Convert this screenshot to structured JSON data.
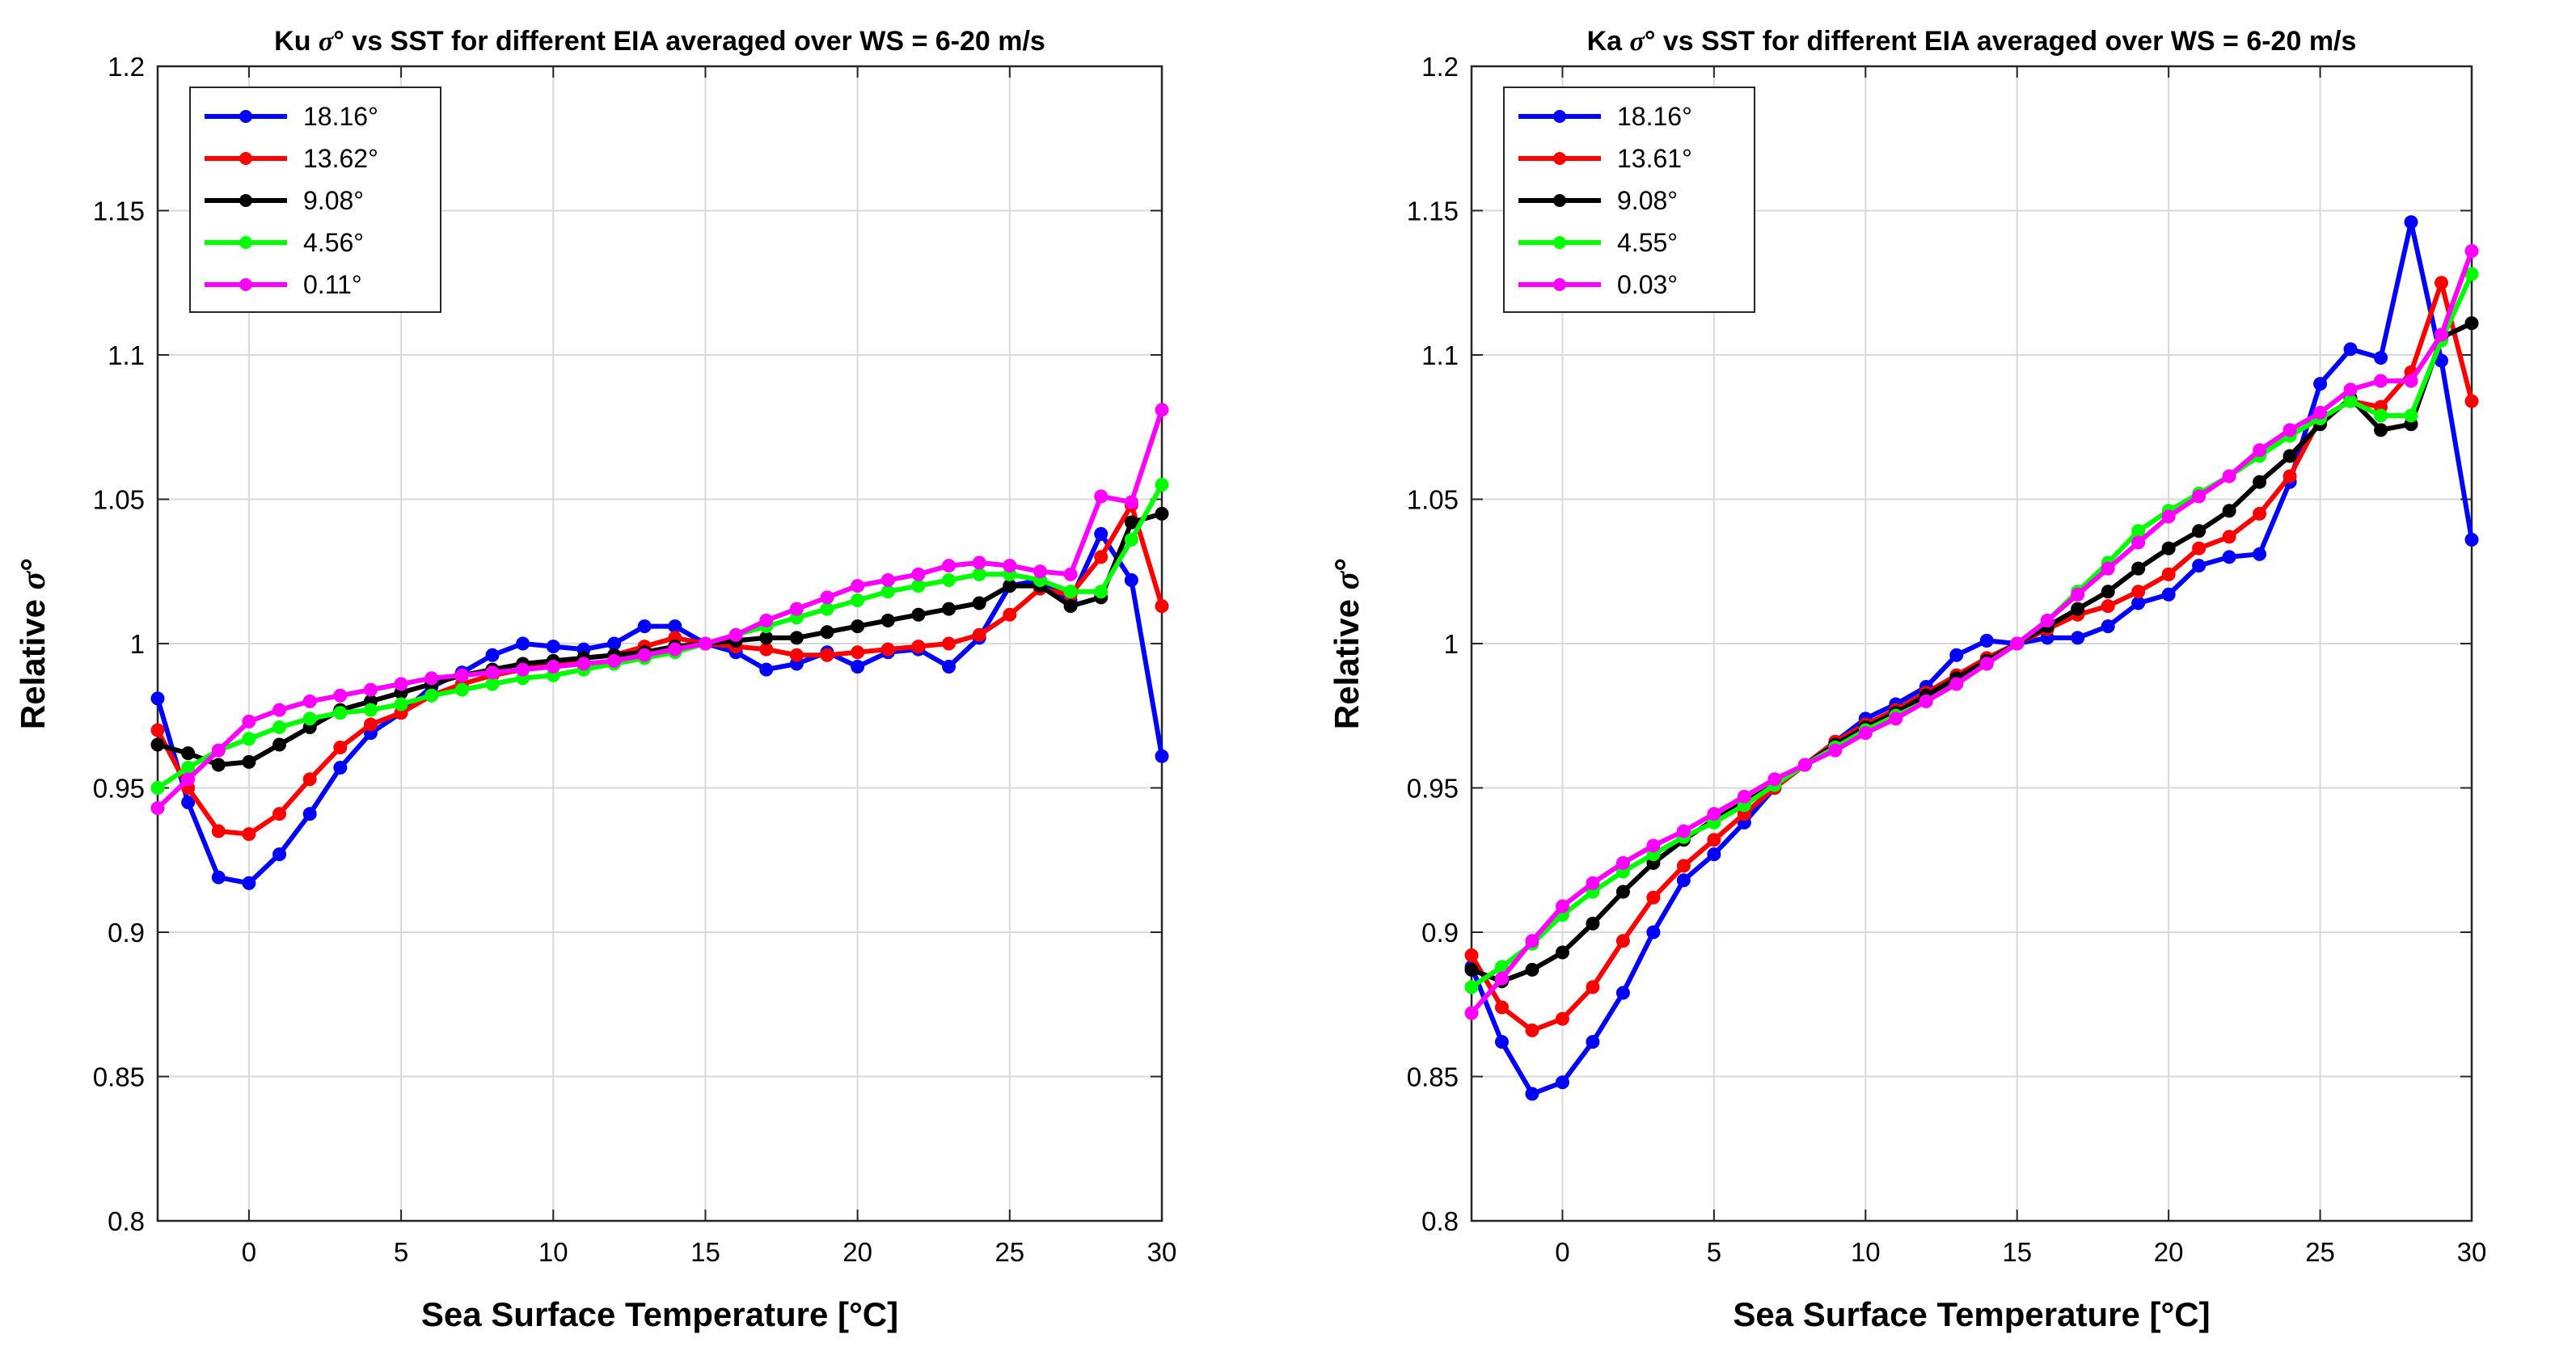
{
  "figure": {
    "background": "#ffffff"
  },
  "chart_data": [
    {
      "type": "line",
      "title_prefix": "Ku ",
      "title_symbol": "σ",
      "title_suffix": "° vs SST for different EIA averaged over WS = 6-20 m/s",
      "xlabel": "Sea Surface Temperature [°C]",
      "ylabel_prefix": "Relative ",
      "ylabel_symbol": "σ",
      "ylabel_suffix": "°",
      "xlim": [
        -3,
        30
      ],
      "ylim": [
        0.8,
        1.2
      ],
      "xticks": [
        0,
        5,
        10,
        15,
        20,
        25,
        30
      ],
      "yticks": [
        0.8,
        0.85,
        0.9,
        0.95,
        1,
        1.05,
        1.1,
        1.15,
        1.2
      ],
      "xtick_labels": [
        "0",
        "5",
        "10",
        "15",
        "20",
        "25",
        "30"
      ],
      "ytick_labels": [
        "0.8",
        "0.85",
        "0.9",
        "0.95",
        "1",
        "1.05",
        "1.1",
        "1.15",
        "1.2"
      ],
      "grid": true,
      "legend_position": "top-left",
      "x": [
        -3,
        -2,
        -1,
        0,
        1,
        2,
        3,
        4,
        5,
        6,
        7,
        8,
        9,
        10,
        11,
        12,
        13,
        14,
        15,
        16,
        17,
        18,
        19,
        20,
        21,
        22,
        23,
        24,
        25,
        26,
        27,
        28,
        29,
        30
      ],
      "series": [
        {
          "name": "18.16°",
          "color": "#0000ff",
          "values": [
            0.981,
            0.945,
            0.919,
            0.917,
            0.927,
            0.941,
            0.957,
            0.969,
            0.976,
            0.985,
            0.99,
            0.996,
            1.0,
            0.999,
            0.998,
            1.0,
            1.006,
            1.006,
            1.0,
            0.997,
            0.991,
            0.993,
            0.997,
            0.992,
            0.997,
            0.998,
            0.992,
            1.002,
            1.02,
            1.022,
            1.015,
            1.038,
            1.022,
            0.961
          ]
        },
        {
          "name": "13.62°",
          "color": "#ff0000",
          "values": [
            0.97,
            0.95,
            0.935,
            0.934,
            0.941,
            0.953,
            0.964,
            0.972,
            0.976,
            0.982,
            0.986,
            0.989,
            0.991,
            0.993,
            0.995,
            0.996,
            0.999,
            1.002,
            1.0,
            0.999,
            0.998,
            0.996,
            0.996,
            0.997,
            0.998,
            0.999,
            1.0,
            1.003,
            1.01,
            1.019,
            1.017,
            1.03,
            1.048,
            1.013
          ]
        },
        {
          "name": "9.08°",
          "color": "#000000",
          "values": [
            0.965,
            0.962,
            0.958,
            0.959,
            0.965,
            0.971,
            0.977,
            0.98,
            0.983,
            0.986,
            0.989,
            0.991,
            0.993,
            0.994,
            0.995,
            0.996,
            0.997,
            0.999,
            1.0,
            1.001,
            1.002,
            1.002,
            1.004,
            1.006,
            1.008,
            1.01,
            1.012,
            1.014,
            1.02,
            1.02,
            1.013,
            1.016,
            1.042,
            1.045
          ]
        },
        {
          "name": "4.56°",
          "color": "#00ff00",
          "values": [
            0.95,
            0.957,
            0.963,
            0.967,
            0.971,
            0.974,
            0.976,
            0.977,
            0.979,
            0.982,
            0.984,
            0.986,
            0.988,
            0.989,
            0.991,
            0.993,
            0.995,
            0.997,
            1.0,
            1.003,
            1.006,
            1.009,
            1.012,
            1.015,
            1.018,
            1.02,
            1.022,
            1.024,
            1.024,
            1.022,
            1.018,
            1.018,
            1.036,
            1.055
          ]
        },
        {
          "name": "0.11°",
          "color": "#ff00ff",
          "values": [
            0.943,
            0.953,
            0.963,
            0.973,
            0.977,
            0.98,
            0.982,
            0.984,
            0.986,
            0.988,
            0.989,
            0.99,
            0.991,
            0.992,
            0.993,
            0.994,
            0.996,
            0.998,
            1.0,
            1.003,
            1.008,
            1.012,
            1.016,
            1.02,
            1.022,
            1.024,
            1.027,
            1.028,
            1.027,
            1.025,
            1.024,
            1.051,
            1.049,
            1.081
          ]
        }
      ]
    },
    {
      "type": "line",
      "title_prefix": "Ka ",
      "title_symbol": "σ",
      "title_suffix": "° vs SST for different EIA averaged over WS = 6-20 m/s",
      "xlabel": "Sea Surface Temperature [°C]",
      "ylabel_prefix": "Relative ",
      "ylabel_symbol": "σ",
      "ylabel_suffix": "°",
      "xlim": [
        -3,
        30
      ],
      "ylim": [
        0.8,
        1.2
      ],
      "xticks": [
        0,
        5,
        10,
        15,
        20,
        25,
        30
      ],
      "yticks": [
        0.8,
        0.85,
        0.9,
        0.95,
        1,
        1.05,
        1.1,
        1.15,
        1.2
      ],
      "xtick_labels": [
        "0",
        "5",
        "10",
        "15",
        "20",
        "25",
        "30"
      ],
      "ytick_labels": [
        "0.8",
        "0.85",
        "0.9",
        "0.95",
        "1",
        "1.05",
        "1.1",
        "1.15",
        "1.2"
      ],
      "grid": true,
      "legend_position": "top-left",
      "x": [
        -3,
        -2,
        -1,
        0,
        1,
        2,
        3,
        4,
        5,
        6,
        7,
        8,
        9,
        10,
        11,
        12,
        13,
        14,
        15,
        16,
        17,
        18,
        19,
        20,
        21,
        22,
        23,
        24,
        25,
        26,
        27,
        28,
        29,
        30
      ],
      "series": [
        {
          "name": "18.16°",
          "color": "#0000ff",
          "values": [
            0.888,
            0.862,
            0.844,
            0.848,
            0.862,
            0.879,
            0.9,
            0.918,
            0.927,
            0.938,
            0.95,
            0.958,
            0.966,
            0.974,
            0.979,
            0.985,
            0.996,
            1.001,
            1.0,
            1.002,
            1.002,
            1.006,
            1.014,
            1.017,
            1.027,
            1.03,
            1.031,
            1.056,
            1.09,
            1.102,
            1.099,
            1.146,
            1.098,
            1.036
          ]
        },
        {
          "name": "13.61°",
          "color": "#ff0000",
          "values": [
            0.892,
            0.874,
            0.866,
            0.87,
            0.881,
            0.897,
            0.912,
            0.923,
            0.932,
            0.941,
            0.95,
            0.958,
            0.966,
            0.972,
            0.977,
            0.983,
            0.989,
            0.995,
            1.0,
            1.005,
            1.01,
            1.013,
            1.018,
            1.024,
            1.033,
            1.037,
            1.045,
            1.058,
            1.078,
            1.084,
            1.082,
            1.094,
            1.125,
            1.084
          ]
        },
        {
          "name": "9.08°",
          "color": "#000000",
          "values": [
            0.887,
            0.883,
            0.887,
            0.893,
            0.903,
            0.914,
            0.924,
            0.932,
            0.939,
            0.945,
            0.951,
            0.958,
            0.965,
            0.971,
            0.976,
            0.982,
            0.988,
            0.994,
            1.0,
            1.006,
            1.012,
            1.018,
            1.026,
            1.033,
            1.039,
            1.046,
            1.056,
            1.065,
            1.076,
            1.085,
            1.074,
            1.076,
            1.106,
            1.111
          ]
        },
        {
          "name": "4.55°",
          "color": "#00ff00",
          "values": [
            0.881,
            0.888,
            0.896,
            0.906,
            0.914,
            0.921,
            0.927,
            0.933,
            0.938,
            0.944,
            0.951,
            0.958,
            0.964,
            0.97,
            0.975,
            0.98,
            0.986,
            0.993,
            1.0,
            1.008,
            1.018,
            1.028,
            1.039,
            1.046,
            1.052,
            1.058,
            1.065,
            1.072,
            1.078,
            1.084,
            1.079,
            1.079,
            1.105,
            1.128
          ]
        },
        {
          "name": "0.03°",
          "color": "#ff00ff",
          "values": [
            0.872,
            0.884,
            0.897,
            0.909,
            0.917,
            0.924,
            0.93,
            0.935,
            0.941,
            0.947,
            0.953,
            0.958,
            0.963,
            0.969,
            0.974,
            0.98,
            0.986,
            0.993,
            1.0,
            1.008,
            1.017,
            1.026,
            1.035,
            1.044,
            1.051,
            1.058,
            1.067,
            1.074,
            1.08,
            1.088,
            1.091,
            1.091,
            1.107,
            1.136
          ]
        }
      ]
    }
  ]
}
